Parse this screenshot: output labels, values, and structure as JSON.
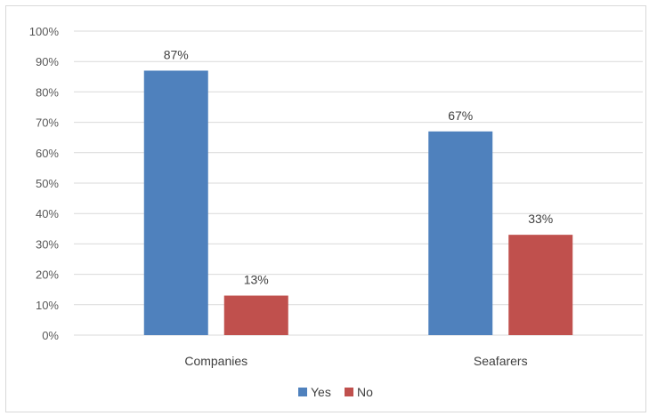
{
  "chart_data": {
    "type": "bar",
    "title": "",
    "xlabel": "",
    "ylabel": "",
    "categories": [
      "Companies",
      "Seafarers"
    ],
    "series": [
      {
        "name": "Yes",
        "values": [
          87,
          67
        ],
        "color": "#4f81bd",
        "labels": [
          "87%",
          "67%"
        ]
      },
      {
        "name": "No",
        "values": [
          13,
          33
        ],
        "color": "#c0504d",
        "labels": [
          "13%",
          "33%"
        ]
      }
    ],
    "ylim": [
      0,
      100
    ],
    "yticks": [
      0,
      10,
      20,
      30,
      40,
      50,
      60,
      70,
      80,
      90,
      100
    ],
    "ytick_labels": [
      "0%",
      "10%",
      "20%",
      "30%",
      "40%",
      "50%",
      "60%",
      "70%",
      "80%",
      "90%",
      "100%"
    ],
    "grid": true,
    "legend_position": "bottom",
    "gridline_color": "#d9d9d9"
  }
}
